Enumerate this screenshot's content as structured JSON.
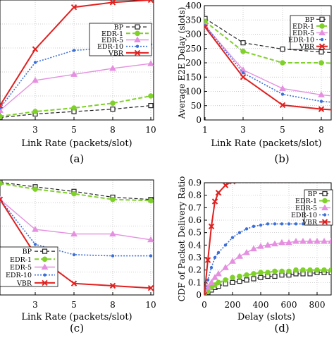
{
  "series_styles": [
    {
      "name": "BP",
      "color": "#222222",
      "marker": "square-open",
      "dash": "5,3",
      "width": 1.2
    },
    {
      "name": "EDR-1",
      "color": "#7fd12a",
      "marker": "circle",
      "dash": "6,3",
      "width": 2
    },
    {
      "name": "EDR-5",
      "color": "#e58fe0",
      "marker": "triangle",
      "dash": "",
      "width": 1.4
    },
    {
      "name": "EDR-10",
      "color": "#3b6fd8",
      "marker": "dot",
      "dash": "2,2",
      "width": 1.6
    },
    {
      "name": "VBR",
      "color": "#e0201f",
      "marker": "x",
      "dash": "",
      "width": 2
    }
  ],
  "chart_data": [
    {
      "type": "line",
      "caption": "(a)",
      "xlabel": "Link Rate (packets/slot)",
      "ylabel": "",
      "x": [
        1,
        3,
        5,
        8,
        10
      ],
      "xticks": [
        3,
        5,
        8,
        10
      ],
      "yticks": [],
      "ylim": [
        0,
        1
      ],
      "grid": true,
      "series": [
        {
          "name": "BP",
          "values": [
            0.02,
            0.05,
            0.07,
            0.09,
            0.12
          ]
        },
        {
          "name": "EDR-1",
          "values": [
            0.03,
            0.07,
            0.1,
            0.14,
            0.2
          ]
        },
        {
          "name": "EDR-5",
          "values": [
            0.08,
            0.33,
            0.38,
            0.43,
            0.47
          ]
        },
        {
          "name": "EDR-10",
          "values": [
            0.1,
            0.48,
            0.58,
            0.6,
            0.63
          ]
        },
        {
          "name": "VBR",
          "values": [
            0.12,
            0.59,
            0.94,
            0.98,
            1.0
          ]
        }
      ],
      "legend": {
        "position": "inside-middle",
        "entries": [
          "BP",
          "EDR-1",
          "EDR-5",
          "EDR-10",
          "VBR"
        ]
      }
    },
    {
      "type": "line",
      "caption": "(b)",
      "xlabel": "Link Rate (packets/slot)",
      "ylabel": "Average E2E Delay (slots)",
      "x": [
        1,
        3,
        5,
        8,
        10
      ],
      "xticks": [
        1,
        3,
        5,
        8,
        10
      ],
      "yticks": [
        0,
        50,
        100,
        150,
        200,
        250,
        300,
        350,
        400
      ],
      "ylim": [
        0,
        400
      ],
      "grid": true,
      "series": [
        {
          "name": "BP",
          "values": [
            355,
            270,
            248,
            238,
            230
          ]
        },
        {
          "name": "EDR-1",
          "values": [
            345,
            240,
            200,
            200,
            195
          ]
        },
        {
          "name": "EDR-5",
          "values": [
            330,
            175,
            110,
            88,
            75
          ]
        },
        {
          "name": "EDR-10",
          "values": [
            330,
            165,
            90,
            65,
            55
          ]
        },
        {
          "name": "VBR",
          "values": [
            325,
            150,
            52,
            38,
            30
          ]
        }
      ],
      "legend": {
        "position": "top-right",
        "entries": [
          "BP",
          "EDR-1",
          "EDR-5",
          "EDR-10",
          "VBR"
        ]
      }
    },
    {
      "type": "line",
      "caption": "(c)",
      "xlabel": "Link Rate (packets/slot)",
      "ylabel": "",
      "x": [
        1,
        3,
        5,
        8,
        10
      ],
      "xticks": [
        3,
        5,
        8,
        10
      ],
      "yticks": [],
      "ylim": [
        0,
        1
      ],
      "grid": true,
      "series": [
        {
          "name": "BP",
          "values": [
            0.98,
            0.94,
            0.9,
            0.85,
            0.83
          ]
        },
        {
          "name": "EDR-1",
          "values": [
            0.97,
            0.92,
            0.88,
            0.83,
            0.82
          ]
        },
        {
          "name": "EDR-5",
          "values": [
            0.83,
            0.57,
            0.53,
            0.53,
            0.48
          ]
        },
        {
          "name": "EDR-10",
          "values": [
            0.83,
            0.44,
            0.35,
            0.34,
            0.34
          ]
        },
        {
          "name": "VBR",
          "values": [
            0.83,
            0.35,
            0.1,
            0.08,
            0.06
          ]
        }
      ],
      "legend": {
        "position": "bottom-left",
        "entries": [
          "BP",
          "EDR-1",
          "EDR-5",
          "EDR-10",
          "VBR"
        ]
      }
    },
    {
      "type": "line",
      "caption": "(d)",
      "xlabel": "Delay (slots)",
      "ylabel": "CDF of Packet Delivery Ratio",
      "x": [
        0,
        25,
        50,
        75,
        100,
        150,
        200,
        250,
        300,
        350,
        400,
        450,
        500,
        550,
        600,
        650,
        700,
        750,
        800,
        850,
        900
      ],
      "xticks": [
        0,
        200,
        400,
        600,
        800
      ],
      "yticks": [
        0,
        0.1,
        0.2,
        0.3,
        0.4,
        0.5,
        0.6,
        0.7,
        0.8,
        0.9
      ],
      "xlim": [
        0,
        900
      ],
      "ylim": [
        0,
        0.9
      ],
      "grid": true,
      "series": [
        {
          "name": "BP",
          "values": [
            0,
            0.02,
            0.04,
            0.06,
            0.07,
            0.09,
            0.1,
            0.11,
            0.12,
            0.13,
            0.14,
            0.15,
            0.15,
            0.16,
            0.16,
            0.17,
            0.17,
            0.17,
            0.18,
            0.18,
            0.18
          ]
        },
        {
          "name": "EDR-1",
          "values": [
            0,
            0.03,
            0.06,
            0.08,
            0.1,
            0.12,
            0.14,
            0.15,
            0.16,
            0.17,
            0.18,
            0.18,
            0.19,
            0.19,
            0.19,
            0.2,
            0.2,
            0.2,
            0.2,
            0.2,
            0.2
          ]
        },
        {
          "name": "EDR-5",
          "values": [
            0,
            0.06,
            0.1,
            0.14,
            0.17,
            0.22,
            0.27,
            0.31,
            0.34,
            0.37,
            0.39,
            0.4,
            0.41,
            0.42,
            0.42,
            0.43,
            0.43,
            0.43,
            0.43,
            0.43,
            0.43
          ]
        },
        {
          "name": "EDR-10",
          "values": [
            0,
            0.12,
            0.22,
            0.3,
            0.34,
            0.4,
            0.46,
            0.5,
            0.53,
            0.55,
            0.56,
            0.57,
            0.57,
            0.57,
            0.57,
            0.57,
            0.57,
            0.57,
            0.57,
            0.57,
            0.57
          ]
        },
        {
          "name": "VBR",
          "values": [
            0,
            0.28,
            0.55,
            0.75,
            0.82,
            0.88,
            0.91,
            0.92,
            0.92,
            0.92,
            0.92,
            0.92,
            0.92,
            0.92,
            0.92,
            0.92,
            0.92,
            0.92,
            0.92,
            0.92,
            0.92
          ]
        }
      ],
      "legend": {
        "position": "top-right",
        "entries": [
          "BP",
          "EDR-1",
          "EDR-5",
          "EDR-10",
          "VBR"
        ]
      }
    }
  ]
}
